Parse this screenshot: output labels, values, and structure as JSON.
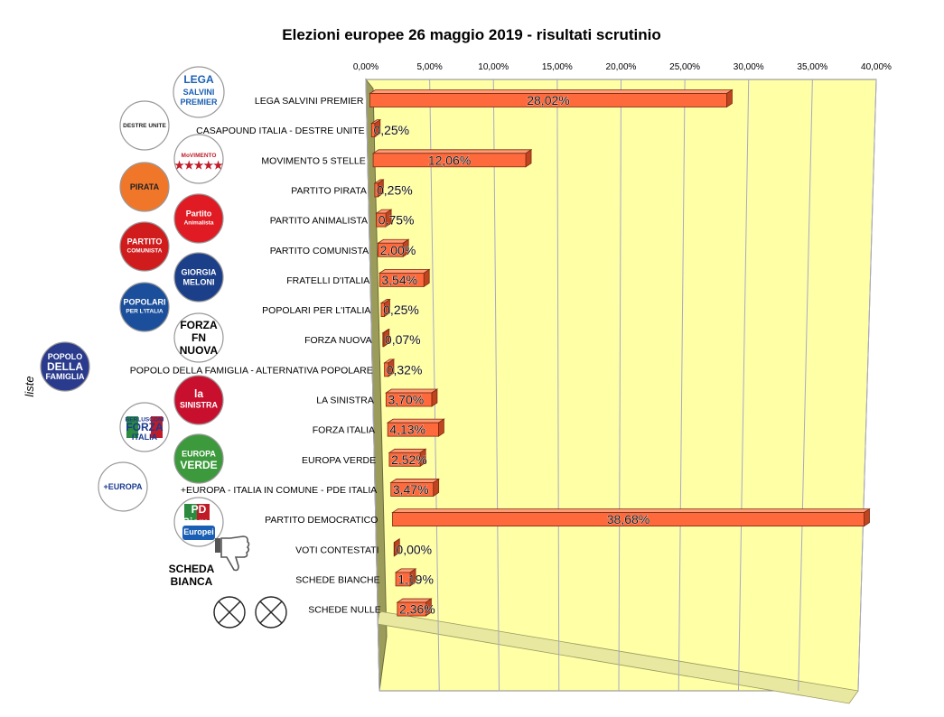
{
  "colors": {
    "bar_front": "#ff6a3d",
    "bar_top": "#ff9a76",
    "bar_side": "#c0441f",
    "wall": "#ffffa6",
    "wall_side": "#9c9c5a",
    "grid": "#a8a8c8"
  },
  "chart_data": {
    "type": "bar",
    "orientation": "horizontal",
    "title": "Elezioni europee 26 maggio 2019 - risultati scrutinio",
    "ylabel": "liste",
    "xlim": [
      0,
      40
    ],
    "x_ticks": [
      "0,00%",
      "5,00%",
      "10,00%",
      "15,00%",
      "20,00%",
      "25,00%",
      "30,00%",
      "35,00%",
      "40,00%"
    ],
    "grid": true,
    "categories": [
      "LEGA SALVINI PREMIER",
      "CASAPOUND ITALIA - DESTRE UNITE",
      "MOVIMENTO 5 STELLE",
      "PARTITO PIRATA",
      "PARTITO ANIMALISTA",
      "PARTITO COMUNISTA",
      "FRATELLI D'ITALIA",
      "POPOLARI PER L'ITALIA",
      "FORZA NUOVA",
      "POPOLO DELLA FAMIGLIA - ALTERNATIVA POPOLARE",
      "LA SINISTRA",
      "FORZA ITALIA",
      "EUROPA VERDE",
      "+EUROPA - ITALIA IN COMUNE - PDE ITALIA",
      "PARTITO DEMOCRATICO",
      "VOTI CONTESTATI",
      "SCHEDE BIANCHE",
      "SCHEDE NULLE"
    ],
    "values": [
      28.02,
      0.25,
      12.06,
      0.25,
      0.75,
      2.0,
      3.54,
      0.25,
      0.07,
      0.32,
      3.7,
      4.13,
      2.52,
      3.47,
      38.68,
      0.0,
      1.19,
      2.36
    ],
    "data_labels": [
      "28,02%",
      "0,25%",
      "12,06%",
      "0,25%",
      "0,75%",
      "2,00%",
      "3,54%",
      "0,25%",
      "0,07%",
      "0,32%",
      "3,70%",
      "4,13%",
      "2,52%",
      "3,47%",
      "38,68%",
      "0,00%",
      "1,19%",
      "2,36%"
    ]
  },
  "logos": [
    {
      "name": "lega",
      "lines": [
        "LEGA",
        "SALVINI",
        "PREMIER"
      ],
      "color": "#1a5fb4",
      "bg": "#ffffff"
    },
    {
      "name": "casapound",
      "lines": [
        "DESTRE UNITE"
      ],
      "color": "#222222",
      "bg": "#ffffff"
    },
    {
      "name": "m5s",
      "lines": [
        "MoVIMENTO",
        "★★★★★"
      ],
      "color": "#c01c28",
      "bg": "#ffffff"
    },
    {
      "name": "pirata",
      "lines": [
        "PIRATA"
      ],
      "color": "#222222",
      "bg": "#f0772a"
    },
    {
      "name": "animalista",
      "lines": [
        "Partito",
        "Animalista"
      ],
      "color": "#ffffff",
      "bg": "#e01b24"
    },
    {
      "name": "comunista",
      "lines": [
        "PARTITO",
        "COMUNISTA"
      ],
      "color": "#ffffff",
      "bg": "#d01c1c"
    },
    {
      "name": "fdi",
      "lines": [
        "GIORGIA",
        "MELONI"
      ],
      "color": "#ffffff",
      "bg": "#1c3f8a"
    },
    {
      "name": "popolari",
      "lines": [
        "POPOLARI",
        "PER L'ITALIA"
      ],
      "color": "#ffffff",
      "bg": "#1b4f9c"
    },
    {
      "name": "forzanuova",
      "lines": [
        "FORZA",
        "FN",
        "NUOVA"
      ],
      "color": "#000000",
      "bg": "#ffffff"
    },
    {
      "name": "famiglia",
      "lines": [
        "POPOLO",
        "DELLA",
        "FAMIGLIA"
      ],
      "color": "#ffffff",
      "bg": "#2a3a8c"
    },
    {
      "name": "sinistra",
      "lines": [
        "la",
        "SINISTRA"
      ],
      "color": "#ffffff",
      "bg": "#c8102e"
    },
    {
      "name": "forzaitalia",
      "lines": [
        "BERLUSCONI",
        "FORZA",
        "ITALIA"
      ],
      "color": "#1a3a8f",
      "bg": "#ffffff"
    },
    {
      "name": "europaverde",
      "lines": [
        "EUROPA",
        "VERDE"
      ],
      "color": "#ffffff",
      "bg": "#3c9a3c"
    },
    {
      "name": "piueuropa",
      "lines": [
        "+EUROPA"
      ],
      "color": "#1a3a8f",
      "bg": "#ffffff"
    },
    {
      "name": "pd",
      "lines": [
        "PD",
        "Siamo",
        "Europei"
      ],
      "color": "#ffffff",
      "bg": "#ffffff"
    },
    {
      "name": "schedabianca",
      "lines": [
        "SCHEDA",
        "BIANCA"
      ],
      "color": "#000000",
      "bg": "#ffffff"
    }
  ]
}
